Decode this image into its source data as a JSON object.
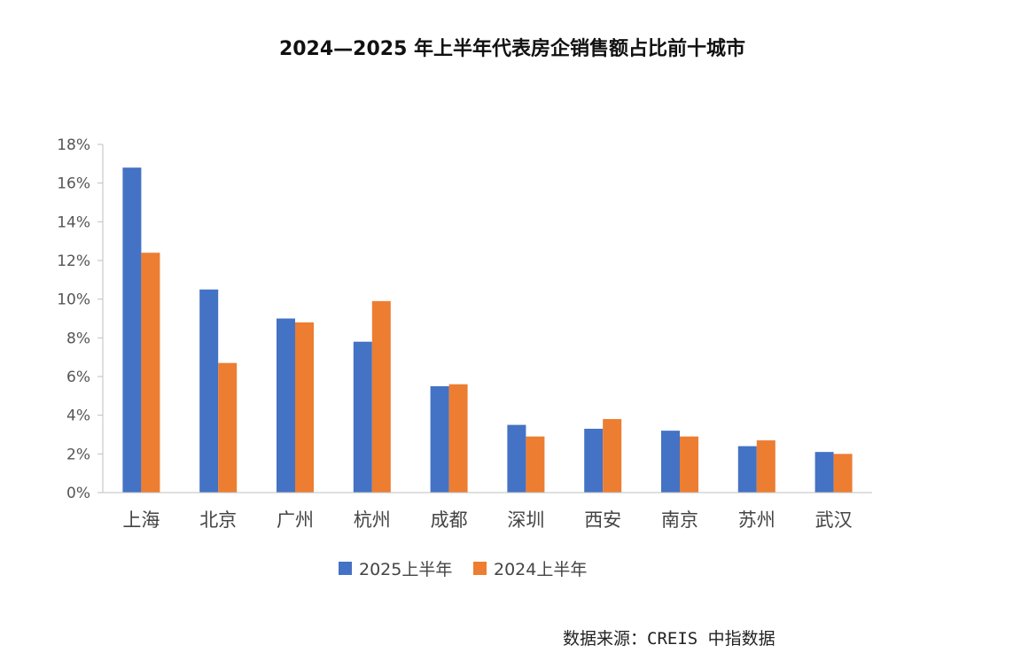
{
  "chart_data": {
    "type": "bar",
    "title": "2024—2025 年上半年代表房企销售额占比前十城市",
    "categories": [
      "上海",
      "北京",
      "广州",
      "杭州",
      "成都",
      "深圳",
      "西安",
      "南京",
      "苏州",
      "武汉"
    ],
    "series": [
      {
        "name": "2025上半年",
        "color": "#4472C4",
        "values": [
          16.8,
          10.5,
          9.0,
          7.8,
          5.5,
          3.5,
          3.3,
          3.2,
          2.4,
          2.1
        ]
      },
      {
        "name": "2024上半年",
        "color": "#ED7D31",
        "values": [
          12.4,
          6.7,
          8.8,
          9.9,
          5.6,
          2.9,
          3.8,
          2.9,
          2.7,
          2.0
        ]
      }
    ],
    "ylim": [
      0,
      18
    ],
    "yticks": [
      0,
      2,
      4,
      6,
      8,
      10,
      12,
      14,
      16,
      18
    ],
    "ytick_suffix": "%",
    "grid": false,
    "legend_position": "bottom"
  },
  "source": "数据来源：CREIS 中指数据"
}
